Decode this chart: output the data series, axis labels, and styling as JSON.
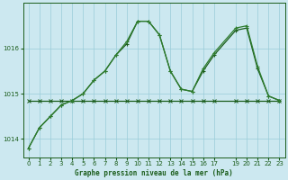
{
  "title": "Graphe pression niveau de la mer (hPa)",
  "background_color": "#cce8f0",
  "grid_color": "#99ccd9",
  "line_color_dark": "#1a5c1a",
  "line_color_mid": "#2e7d2e",
  "xlim": [
    -0.5,
    23.5
  ],
  "ylim": [
    1013.6,
    1017.0
  ],
  "yticks": [
    1014,
    1015,
    1016
  ],
  "xticks": [
    0,
    1,
    2,
    3,
    4,
    5,
    6,
    7,
    8,
    9,
    10,
    11,
    12,
    13,
    14,
    15,
    16,
    17,
    19,
    20,
    21,
    22,
    23
  ],
  "series_flat_x": [
    0,
    1,
    2,
    3,
    4,
    5,
    6,
    7,
    8,
    9,
    10,
    11,
    12,
    13,
    14,
    15,
    16,
    17,
    19,
    20,
    21,
    22,
    23
  ],
  "series_flat_y": [
    1014.85,
    1014.85,
    1014.85,
    1014.85,
    1014.85,
    1014.85,
    1014.85,
    1014.85,
    1014.85,
    1014.85,
    1014.85,
    1014.85,
    1014.85,
    1014.85,
    1014.85,
    1014.85,
    1014.85,
    1014.85,
    1014.85,
    1014.85,
    1014.85,
    1014.85,
    1014.85
  ],
  "series_main_x": [
    0,
    1,
    2,
    3,
    4,
    5,
    6,
    7,
    8,
    9,
    10,
    11,
    12,
    13,
    14,
    15,
    16,
    17,
    19,
    20,
    21,
    22,
    23
  ],
  "series_main_y": [
    1013.8,
    1014.25,
    1014.5,
    1014.75,
    1014.85,
    1015.0,
    1015.3,
    1015.5,
    1015.85,
    1016.1,
    1016.6,
    1016.6,
    1016.3,
    1015.5,
    1015.1,
    1015.05,
    1015.5,
    1015.85,
    1016.4,
    1016.45,
    1015.55,
    1014.95,
    1014.85
  ],
  "series_second_x": [
    0,
    1,
    2,
    3,
    4,
    5,
    6,
    7,
    8,
    9,
    10,
    11,
    12,
    13,
    14,
    15,
    16,
    17,
    19,
    20,
    21,
    22,
    23
  ],
  "series_second_y": [
    1013.8,
    1014.25,
    1014.5,
    1014.75,
    1014.85,
    1015.0,
    1015.3,
    1015.5,
    1015.85,
    1016.15,
    1016.6,
    1016.6,
    1016.3,
    1015.5,
    1015.1,
    1015.05,
    1015.55,
    1015.9,
    1016.45,
    1016.5,
    1015.6,
    1014.95,
    1014.85
  ],
  "ylabel_fontsize": 5.5,
  "tick_fontsize": 5,
  "marker_size": 2.5,
  "lw": 0.9
}
